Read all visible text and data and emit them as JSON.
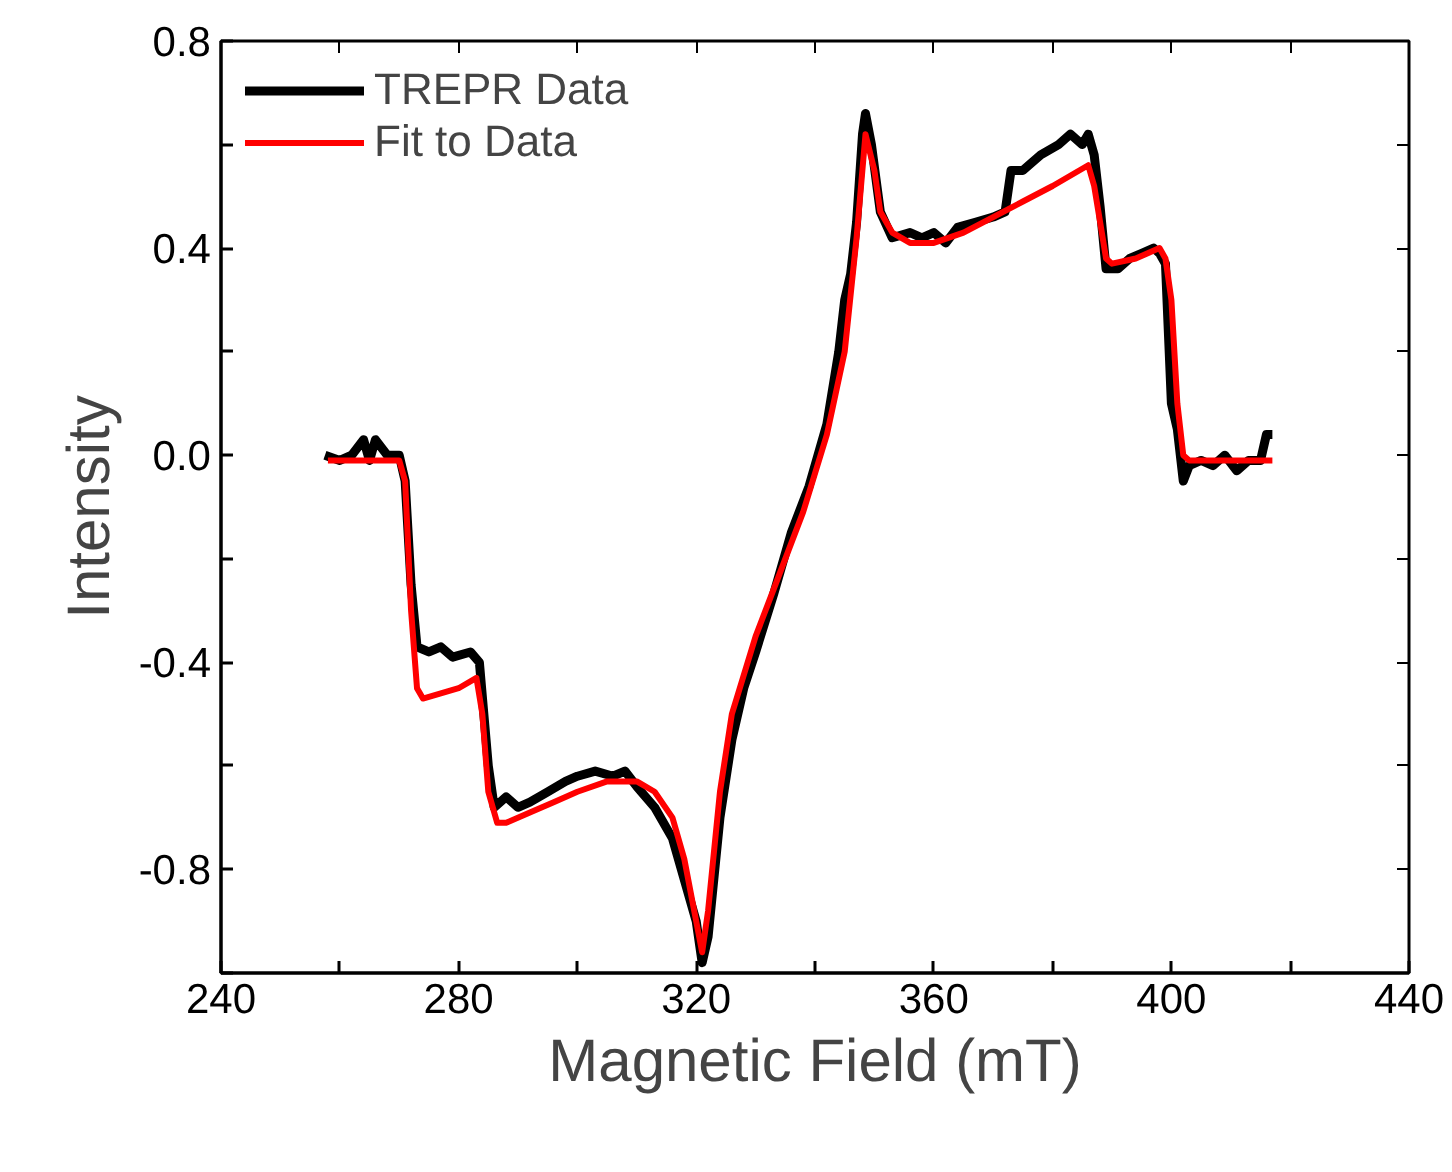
{
  "chart_data": {
    "type": "line",
    "xlabel": "Magnetic Field (mT)",
    "ylabel": "Intensity",
    "xlim": [
      240,
      440
    ],
    "ylim": [
      -1.0,
      0.8
    ],
    "xticks": [
      240,
      {
        "value": 260,
        "label": null
      },
      280,
      {
        "value": 300,
        "label": null
      },
      320,
      {
        "value": 340,
        "label": null
      },
      360,
      {
        "value": 380,
        "label": null
      },
      400,
      {
        "value": 420,
        "label": null
      },
      440
    ],
    "yticks": [
      {
        "value": -1.0,
        "label": null
      },
      -0.8,
      {
        "value": -0.6,
        "label": null
      },
      {
        "value": -0.4,
        "label": "-0.4"
      },
      {
        "value": -0.2,
        "label": null
      },
      {
        "value": 0.0,
        "label": "0.0"
      },
      {
        "value": 0.2,
        "label": null
      },
      0.4,
      {
        "value": 0.6,
        "label": null
      },
      0.8
    ],
    "grid": false,
    "legend": "top left",
    "line_style": "solid",
    "marker": "none",
    "series": [
      {
        "name": "TREPR Data",
        "color": "#000000",
        "x": [
          257.5,
          260,
          262,
          264,
          265,
          266,
          268,
          270,
          271,
          272,
          273,
          275,
          277,
          279,
          282,
          283.5,
          285,
          286,
          288,
          290,
          292,
          295,
          298,
          300,
          303,
          306,
          308,
          310,
          313,
          316,
          318,
          320,
          321,
          322,
          324,
          326,
          328,
          330,
          333,
          336,
          339,
          342,
          344,
          345,
          346,
          347,
          348,
          348.5,
          349.5,
          351,
          353,
          356,
          358,
          360,
          362,
          364,
          367,
          370,
          372,
          373,
          375,
          378,
          381,
          383,
          385,
          386,
          387,
          388,
          389,
          391,
          393,
          395,
          397,
          398,
          399,
          400,
          401,
          402,
          403,
          405,
          407,
          409,
          411,
          413,
          415,
          416,
          417
        ],
        "values": [
          0.0,
          -0.01,
          0.0,
          0.03,
          -0.01,
          0.03,
          0.0,
          0.0,
          -0.05,
          -0.25,
          -0.37,
          -0.38,
          -0.37,
          -0.39,
          -0.38,
          -0.4,
          -0.6,
          -0.68,
          -0.66,
          -0.68,
          -0.67,
          -0.65,
          -0.63,
          -0.62,
          -0.61,
          -0.62,
          -0.61,
          -0.64,
          -0.68,
          -0.74,
          -0.82,
          -0.9,
          -0.98,
          -0.93,
          -0.7,
          -0.55,
          -0.45,
          -0.38,
          -0.27,
          -0.15,
          -0.06,
          0.06,
          0.2,
          0.3,
          0.35,
          0.45,
          0.62,
          0.66,
          0.6,
          0.47,
          0.42,
          0.43,
          0.42,
          0.43,
          0.41,
          0.44,
          0.45,
          0.46,
          0.47,
          0.55,
          0.55,
          0.58,
          0.6,
          0.62,
          0.6,
          0.62,
          0.58,
          0.48,
          0.36,
          0.36,
          0.38,
          0.39,
          0.4,
          0.39,
          0.37,
          0.1,
          0.05,
          -0.05,
          -0.02,
          -0.01,
          -0.02,
          0.0,
          -0.03,
          -0.01,
          -0.01,
          0.04,
          0.04
        ]
      },
      {
        "name": "Fit to Data",
        "color": "#ff0000",
        "x": [
          258,
          270,
          271,
          272,
          273,
          274,
          277,
          280,
          283,
          284,
          285,
          286.5,
          288,
          292,
          296,
          300,
          305,
          310,
          313,
          316,
          318,
          320,
          321,
          322,
          324,
          326,
          330,
          334,
          338,
          342,
          345,
          347,
          348.5,
          350,
          351,
          353,
          356,
          360,
          365,
          370,
          375,
          380,
          386,
          387,
          388,
          389,
          390,
          394,
          398,
          399,
          400,
          401,
          402,
          403,
          417
        ],
        "values": [
          -0.01,
          -0.01,
          -0.05,
          -0.3,
          -0.45,
          -0.47,
          -0.46,
          -0.45,
          -0.43,
          -0.5,
          -0.65,
          -0.71,
          -0.71,
          -0.69,
          -0.67,
          -0.65,
          -0.63,
          -0.63,
          -0.65,
          -0.7,
          -0.78,
          -0.9,
          -0.96,
          -0.88,
          -0.65,
          -0.5,
          -0.35,
          -0.23,
          -0.11,
          0.04,
          0.2,
          0.42,
          0.62,
          0.55,
          0.47,
          0.43,
          0.41,
          0.41,
          0.43,
          0.46,
          0.49,
          0.52,
          0.56,
          0.52,
          0.45,
          0.38,
          0.37,
          0.38,
          0.4,
          0.38,
          0.3,
          0.1,
          0.0,
          -0.01,
          -0.01
        ]
      }
    ]
  }
}
